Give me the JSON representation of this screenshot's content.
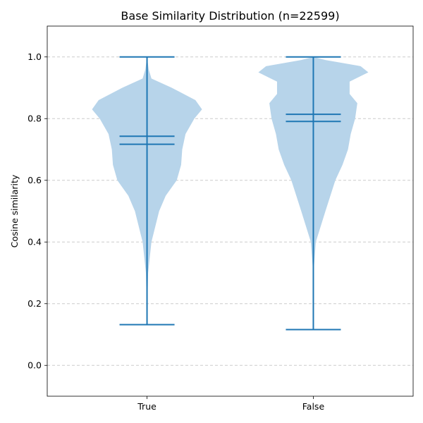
{
  "colors": {
    "violin_fill": "#b7d4ea",
    "violin_line": "#1f77b4",
    "grid": "#cccccc",
    "axis": "#000000"
  },
  "chart_data": {
    "type": "violin",
    "title": "Base Similarity Distribution (n=22599)",
    "xlabel": "",
    "ylabel": "Cosine similarity",
    "categories": [
      "True",
      "False"
    ],
    "ylim": [
      -0.1,
      1.1
    ],
    "yticks": [
      0.0,
      0.2,
      0.4,
      0.6,
      0.8,
      1.0
    ],
    "ytick_labels": [
      "0.0",
      "0.2",
      "0.4",
      "0.6",
      "0.8",
      "1.0"
    ],
    "grid": {
      "y": true,
      "style": "dashed"
    },
    "series": [
      {
        "category": "True",
        "min": 0.132,
        "max": 1.0,
        "mean": 0.743,
        "median": 0.717,
        "density": [
          [
            0.132,
            0.0
          ],
          [
            0.2,
            0.006
          ],
          [
            0.3,
            0.02
          ],
          [
            0.4,
            0.08
          ],
          [
            0.5,
            0.22
          ],
          [
            0.55,
            0.34
          ],
          [
            0.6,
            0.54
          ],
          [
            0.65,
            0.62
          ],
          [
            0.7,
            0.64
          ],
          [
            0.75,
            0.7
          ],
          [
            0.8,
            0.86
          ],
          [
            0.83,
            1.0
          ],
          [
            0.86,
            0.88
          ],
          [
            0.9,
            0.45
          ],
          [
            0.93,
            0.08
          ],
          [
            0.96,
            0.03
          ],
          [
            1.0,
            0.0
          ]
        ]
      },
      {
        "category": "False",
        "min": 0.116,
        "max": 1.0,
        "mean": 0.814,
        "median": 0.791,
        "density": [
          [
            0.116,
            0.0
          ],
          [
            0.3,
            0.003
          ],
          [
            0.4,
            0.045
          ],
          [
            0.5,
            0.22
          ],
          [
            0.6,
            0.4
          ],
          [
            0.65,
            0.53
          ],
          [
            0.7,
            0.63
          ],
          [
            0.75,
            0.68
          ],
          [
            0.8,
            0.76
          ],
          [
            0.85,
            0.8
          ],
          [
            0.88,
            0.66
          ],
          [
            0.92,
            0.66
          ],
          [
            0.95,
            1.0
          ],
          [
            0.97,
            0.86
          ],
          [
            0.99,
            0.22
          ],
          [
            1.0,
            0.0
          ]
        ]
      }
    ]
  }
}
